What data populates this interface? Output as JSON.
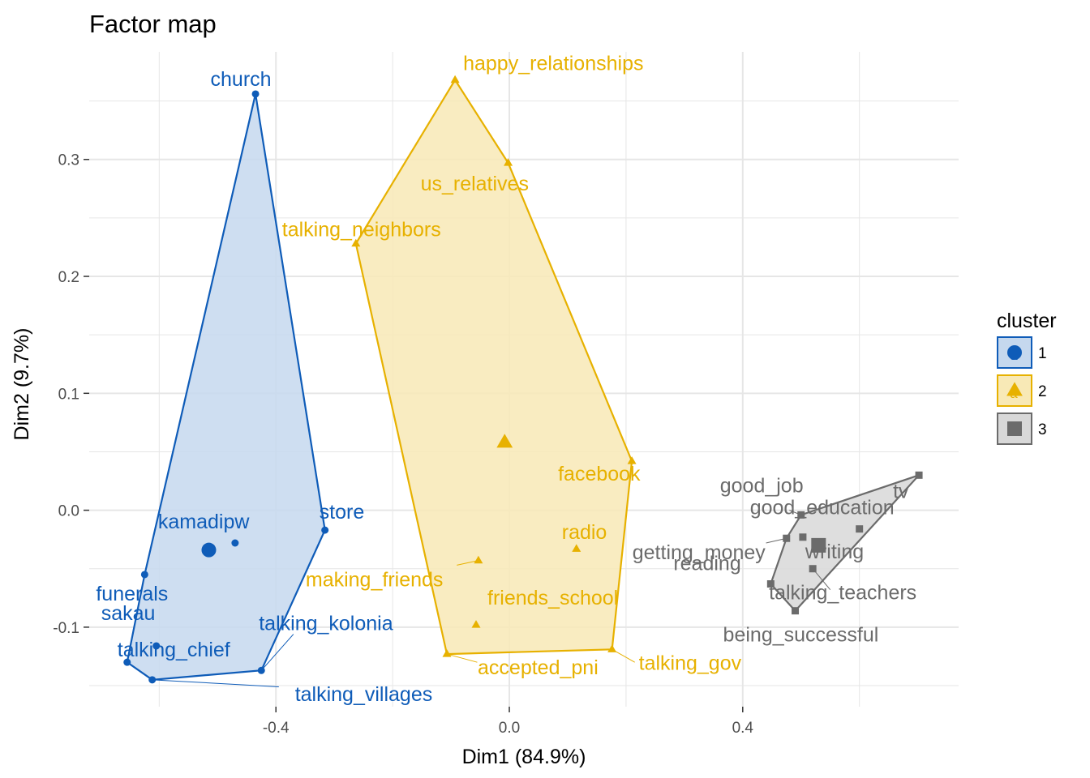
{
  "chart_data": {
    "type": "scatter",
    "title": "Factor map",
    "xlabel": "Dim1 (84.9%)",
    "ylabel": "Dim2 (9.7%)",
    "xlim": [
      -0.72,
      0.77
    ],
    "ylim": [
      -0.168,
      0.392
    ],
    "x_ticks": [
      -0.4,
      0.0,
      0.4
    ],
    "x_tick_labels": [
      "-0.4",
      "0.0",
      "0.4"
    ],
    "y_ticks": [
      -0.1,
      0.0,
      0.1,
      0.2,
      0.3
    ],
    "y_tick_labels": [
      "-0.1",
      "0.0",
      "0.1",
      "0.2",
      "0.3"
    ],
    "grid": true,
    "legend": {
      "title": "cluster",
      "placement": "right",
      "entries": [
        {
          "label": "1",
          "letter": "a",
          "shape": "circle",
          "color": "#0F5CB8",
          "fill": "#C5D8EE"
        },
        {
          "label": "2",
          "letter": "a",
          "shape": "triangle",
          "color": "#E7B100",
          "fill": "#F8E9B6"
        },
        {
          "label": "3",
          "letter": "a",
          "shape": "square",
          "color": "#6B6B6B",
          "fill": "#D8D8D8"
        }
      ]
    },
    "series": [
      {
        "name": "1",
        "color": "#0F5CB8",
        "fill": "#C5D8EE",
        "shape": "circle",
        "center": {
          "x": -0.515,
          "y": -0.034
        },
        "hull": [
          [
            -0.435,
            0.356
          ],
          [
            -0.316,
            -0.017
          ],
          [
            -0.425,
            -0.137
          ],
          [
            -0.612,
            -0.145
          ],
          [
            -0.655,
            -0.13
          ],
          [
            -0.625,
            -0.055
          ]
        ],
        "points": [
          {
            "label": "church",
            "x": -0.435,
            "y": 0.356
          },
          {
            "label": "store",
            "x": -0.316,
            "y": -0.017
          },
          {
            "label": "kamadipw",
            "x": -0.47,
            "y": -0.028
          },
          {
            "label": "funerals",
            "x": -0.625,
            "y": -0.055
          },
          {
            "label": "sakau",
            "x": -0.605,
            "y": -0.116
          },
          {
            "label": "talking_kolonia",
            "x": -0.425,
            "y": -0.137
          },
          {
            "label": "talking_chief",
            "x": -0.655,
            "y": -0.13
          },
          {
            "label": "talking_villages",
            "x": -0.612,
            "y": -0.145
          }
        ]
      },
      {
        "name": "2",
        "color": "#E7B100",
        "fill": "#F8E9B6",
        "shape": "triangle",
        "center": {
          "x": -0.008,
          "y": 0.058
        },
        "hull": [
          [
            -0.093,
            0.368
          ],
          [
            -0.002,
            0.297
          ],
          [
            0.21,
            0.042
          ],
          [
            0.176,
            -0.119
          ],
          [
            -0.107,
            -0.123
          ],
          [
            -0.263,
            0.228
          ]
        ],
        "points": [
          {
            "label": "happy_relationships",
            "x": -0.093,
            "y": 0.368
          },
          {
            "label": "us_relatives",
            "x": -0.002,
            "y": 0.297
          },
          {
            "label": "talking_neighbors",
            "x": -0.263,
            "y": 0.228
          },
          {
            "label": "facebook",
            "x": 0.21,
            "y": 0.042
          },
          {
            "label": "radio",
            "x": 0.115,
            "y": -0.033
          },
          {
            "label": "making_friends",
            "x": -0.053,
            "y": -0.043
          },
          {
            "label": "friends_school",
            "x": -0.057,
            "y": -0.098
          },
          {
            "label": "accepted_pni",
            "x": -0.107,
            "y": -0.123
          },
          {
            "label": "talking_gov",
            "x": 0.176,
            "y": -0.119
          }
        ]
      },
      {
        "name": "3",
        "color": "#6B6B6B",
        "fill": "#D8D8D8",
        "shape": "square",
        "center": {
          "x": 0.53,
          "y": -0.03
        },
        "hull": [
          [
            0.702,
            0.03
          ],
          [
            0.49,
            -0.086
          ],
          [
            0.448,
            -0.063
          ],
          [
            0.475,
            -0.024
          ],
          [
            0.5,
            -0.004
          ]
        ],
        "points": [
          {
            "label": "good_job",
            "x": 0.5,
            "y": -0.004
          },
          {
            "label": "tv",
            "x": 0.702,
            "y": 0.03
          },
          {
            "label": "good_education",
            "x": 0.6,
            "y": -0.016
          },
          {
            "label": "getting_money",
            "x": 0.475,
            "y": -0.024
          },
          {
            "label": "writing",
            "x": 0.503,
            "y": -0.023
          },
          {
            "label": "reading",
            "x": 0.448,
            "y": -0.063
          },
          {
            "label": "talking_teachers",
            "x": 0.52,
            "y": -0.05
          },
          {
            "label": "being_successful",
            "x": 0.49,
            "y": -0.086
          }
        ]
      }
    ]
  }
}
